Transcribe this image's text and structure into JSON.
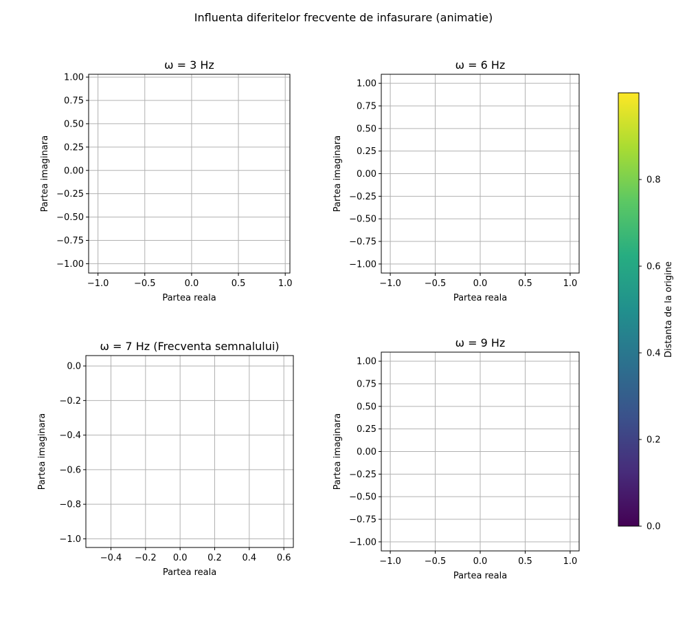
{
  "suptitle": "Influenta diferitelor frecvente de infasurare (animatie)",
  "chart_data": [
    {
      "type": "scatter",
      "title": "ω = 3 Hz",
      "xlabel": "Partea reala",
      "ylabel": "Partea imaginara",
      "xlim": [
        -1.1,
        1.05
      ],
      "ylim": [
        -1.1,
        1.03
      ],
      "xticks": [
        "-1.0",
        "-0.5",
        "0.0",
        "0.5",
        "1.0"
      ],
      "yticks": [
        "-1.00",
        "-0.75",
        "-0.50",
        "-0.25",
        "0.00",
        "0.25",
        "0.50",
        "0.75",
        "1.00"
      ],
      "grid": true,
      "series": []
    },
    {
      "type": "scatter",
      "title": "ω = 6 Hz",
      "xlabel": "Partea reala",
      "ylabel": "Partea imaginara",
      "xlim": [
        -1.1,
        1.1
      ],
      "ylim": [
        -1.1,
        1.1
      ],
      "xticks": [
        "-1.0",
        "-0.5",
        "0.0",
        "0.5",
        "1.0"
      ],
      "yticks": [
        "-1.00",
        "-0.75",
        "-0.50",
        "-0.25",
        "0.00",
        "0.25",
        "0.50",
        "0.75",
        "1.00"
      ],
      "grid": true,
      "series": []
    },
    {
      "type": "scatter",
      "title": "ω = 7 Hz (Frecventa semnalului)",
      "xlabel": "Partea reala",
      "ylabel": "Partea imaginara",
      "xlim": [
        -0.545,
        0.655
      ],
      "ylim": [
        -1.05,
        0.06
      ],
      "xticks": [
        "-0.4",
        "-0.2",
        "0.0",
        "0.2",
        "0.4",
        "0.6"
      ],
      "yticks": [
        "-1.0",
        "-0.8",
        "-0.6",
        "-0.4",
        "-0.2",
        "0.0"
      ],
      "grid": true,
      "series": []
    },
    {
      "type": "scatter",
      "title": "ω = 9 Hz",
      "xlabel": "Partea reala",
      "ylabel": "Partea imaginara",
      "xlim": [
        -1.1,
        1.1
      ],
      "ylim": [
        -1.1,
        1.1
      ],
      "xticks": [
        "-1.0",
        "-0.5",
        "0.0",
        "0.5",
        "1.0"
      ],
      "yticks": [
        "-1.00",
        "-0.75",
        "-0.50",
        "-0.25",
        "0.00",
        "0.25",
        "0.50",
        "0.75",
        "1.00"
      ],
      "grid": true,
      "series": []
    }
  ],
  "colorbar": {
    "label": "Distanta de la origine",
    "colormap": "viridis",
    "range": [
      0,
      1
    ],
    "ticks": [
      "0.0",
      "0.2",
      "0.4",
      "0.6",
      "0.8"
    ],
    "colors": [
      "#440154",
      "#472c7a",
      "#3b518b",
      "#2c718e",
      "#21908d",
      "#27ad81",
      "#5cc863",
      "#aadc32",
      "#fde725"
    ]
  }
}
